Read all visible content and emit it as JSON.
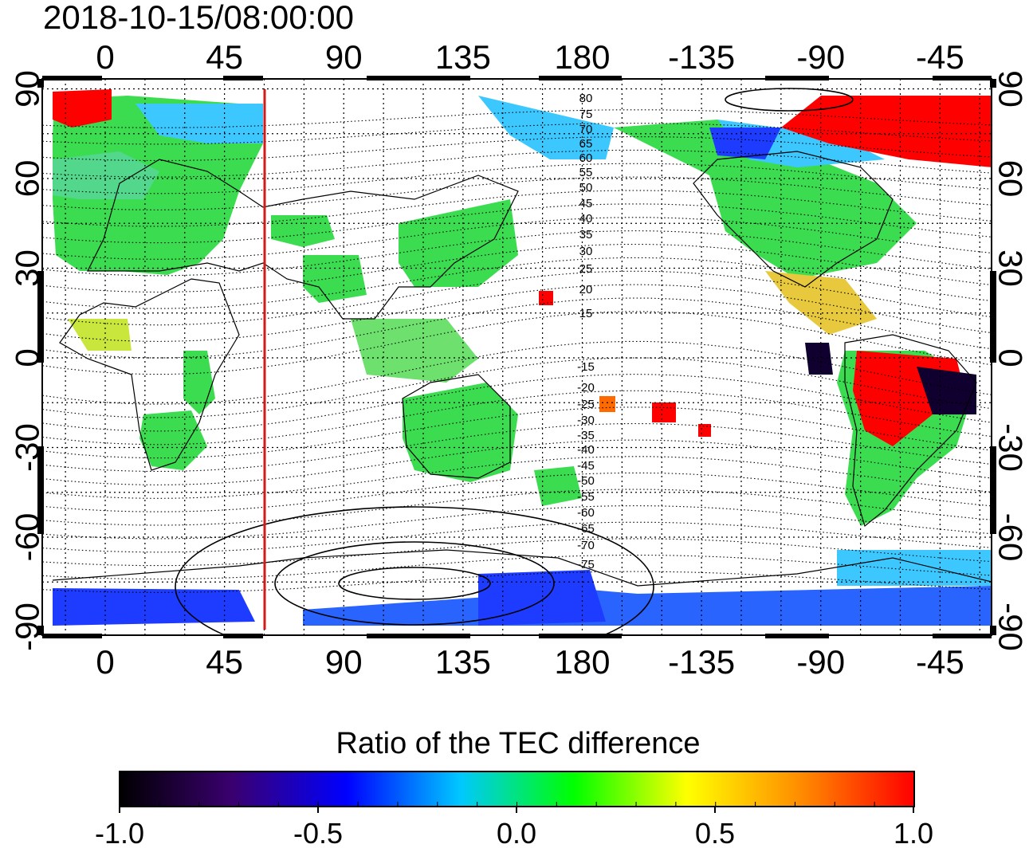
{
  "title": "2018-10-15/08:00:00",
  "map": {
    "lon_ticks": [
      "0",
      "45",
      "90",
      "135",
      "180",
      "-135",
      "-90",
      "-45"
    ],
    "lat_ticks_left": [
      "90",
      "60",
      "30",
      "0",
      "-30",
      "-60",
      "-90"
    ],
    "lat_ticks_right": [
      "90",
      "60",
      "30",
      "0",
      "-30",
      "-60",
      "-90"
    ],
    "contour_labels_north": [
      "80",
      "75",
      "70",
      "65",
      "60",
      "55",
      "50",
      "45",
      "40",
      "35",
      "30",
      "25",
      "20",
      "15"
    ],
    "contour_labels_south": [
      "-15",
      "-20",
      "-25",
      "-30",
      "-35",
      "-40",
      "-45",
      "-50",
      "-55",
      "-60",
      "-65",
      "-70",
      "-75"
    ],
    "marker_line_color": "#d21a1a",
    "grid_style": "dotted"
  },
  "colorbar": {
    "label": "Ratio of the TEC difference",
    "ticks": [
      "-1.0",
      "-0.5",
      "0.0",
      "0.5",
      "1.0"
    ],
    "stops": [
      "#000000",
      "#3a0070",
      "#0000ff",
      "#00c8ff",
      "#00ff00",
      "#ffff00",
      "#ff8c00",
      "#ff0000"
    ]
  },
  "colors": {
    "red": "#ff0000",
    "blue": "#1e3cff",
    "lightblue": "#3cc8ff",
    "green": "#3cdc50",
    "yellow": "#f0e61e",
    "darknavy": "#100030"
  }
}
